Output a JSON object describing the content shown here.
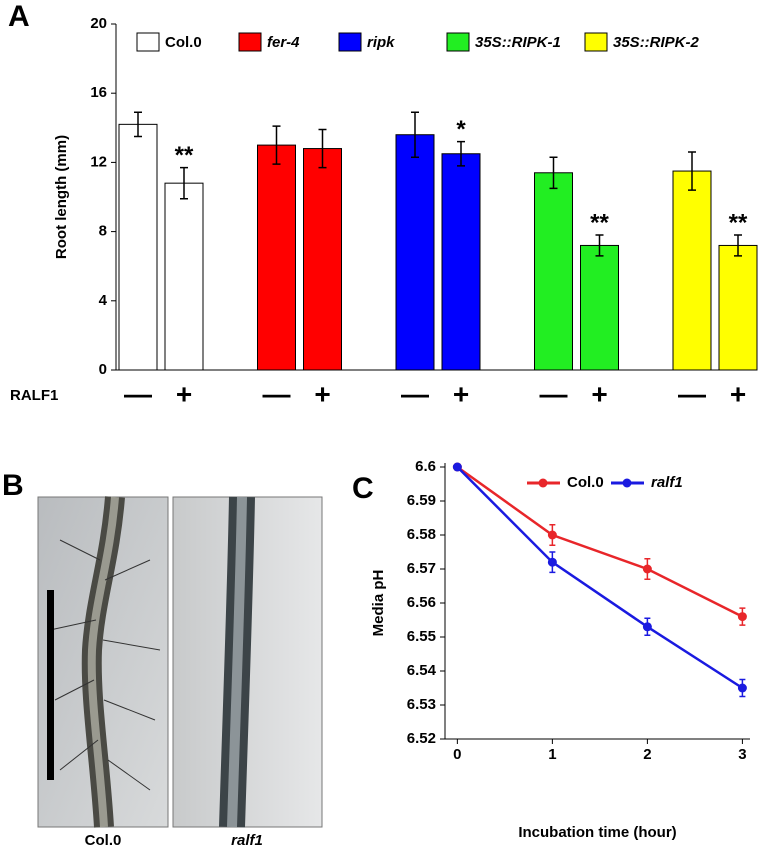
{
  "panel_labels": [
    "A",
    "B",
    "C"
  ],
  "micrographs": [
    {
      "label": "Col.0"
    },
    {
      "label": "ralf1"
    }
  ],
  "chart_data": [
    {
      "type": "bar",
      "ylabel": "Root length (mm)",
      "treatment_label": "RALF1",
      "treatment_ticks": [
        "—",
        "+"
      ],
      "ylim": [
        0,
        20
      ],
      "yticks": [
        0,
        4,
        8,
        12,
        16,
        20
      ],
      "series": [
        {
          "name": "Col.0",
          "color": "#ffffff",
          "font_style": "normal",
          "values": [
            14.2,
            10.8
          ],
          "errors": [
            0.7,
            0.9
          ],
          "annotations": [
            null,
            "**"
          ]
        },
        {
          "name": "fer-4",
          "color": "#ff0000",
          "font_style": "italic",
          "values": [
            13.0,
            12.8
          ],
          "errors": [
            1.1,
            1.1
          ],
          "annotations": [
            null,
            null
          ]
        },
        {
          "name": "ripk",
          "color": "#0000ff",
          "font_style": "italic",
          "values": [
            13.6,
            12.5
          ],
          "errors": [
            1.3,
            0.7
          ],
          "annotations": [
            null,
            "*"
          ]
        },
        {
          "name": "35S::RIPK-1",
          "color": "#22ee22",
          "font_style": "italic",
          "values": [
            11.4,
            7.2
          ],
          "errors": [
            0.9,
            0.6
          ],
          "annotations": [
            null,
            "**"
          ]
        },
        {
          "name": "35S::RIPK-2",
          "color": "#ffff00",
          "font_style": "italic",
          "values": [
            11.5,
            7.2
          ],
          "errors": [
            1.1,
            0.6
          ],
          "annotations": [
            null,
            "**"
          ]
        }
      ]
    },
    {
      "type": "line",
      "xlabel": "Incubation time (hour)",
      "ylabel": "Media pH",
      "x": [
        0,
        1,
        2,
        3
      ],
      "xlim": [
        -0.13,
        3.08
      ],
      "xticks": [
        0,
        1,
        2,
        3
      ],
      "ylim": [
        6.52,
        6.6
      ],
      "yticks": [
        6.52,
        6.53,
        6.54,
        6.55,
        6.56,
        6.57,
        6.58,
        6.59,
        6.6
      ],
      "series": [
        {
          "name": "Col.0",
          "color": "#e8262a",
          "font_style": "normal",
          "values": [
            6.6,
            6.58,
            6.57,
            6.556
          ],
          "errors": [
            0,
            0.003,
            0.003,
            0.0025
          ]
        },
        {
          "name": "ralf1",
          "color": "#1a1ae0",
          "font_style": "italic",
          "values": [
            6.6,
            6.572,
            6.553,
            6.535
          ],
          "errors": [
            0,
            0.003,
            0.0025,
            0.0025
          ]
        }
      ]
    }
  ]
}
